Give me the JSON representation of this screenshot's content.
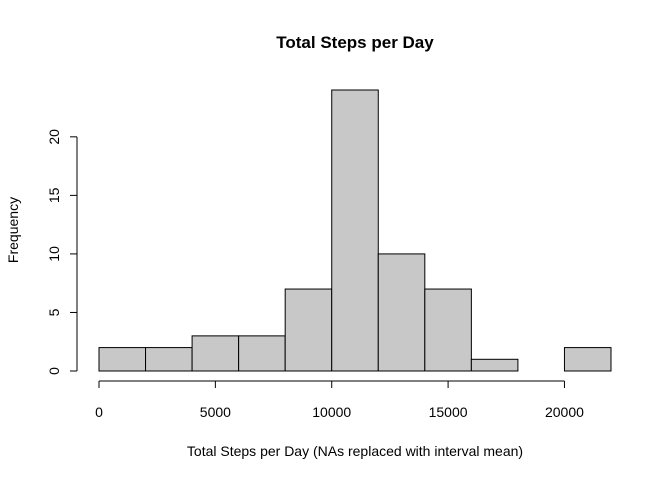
{
  "chart_data": {
    "type": "bar",
    "subtype": "histogram",
    "title": "Total Steps per Day",
    "xlabel": "Total Steps per Day (NAs replaced with interval mean)",
    "ylabel": "Frequency",
    "bins": [
      {
        "start": 0,
        "end": 2000,
        "count": 2
      },
      {
        "start": 2000,
        "end": 4000,
        "count": 2
      },
      {
        "start": 4000,
        "end": 6000,
        "count": 3
      },
      {
        "start": 6000,
        "end": 8000,
        "count": 3
      },
      {
        "start": 8000,
        "end": 10000,
        "count": 7
      },
      {
        "start": 10000,
        "end": 12000,
        "count": 24
      },
      {
        "start": 12000,
        "end": 14000,
        "count": 10
      },
      {
        "start": 14000,
        "end": 16000,
        "count": 7
      },
      {
        "start": 16000,
        "end": 18000,
        "count": 1
      },
      {
        "start": 18000,
        "end": 20000,
        "count": 0
      },
      {
        "start": 20000,
        "end": 22000,
        "count": 2
      }
    ],
    "xlim": [
      0,
      22000
    ],
    "ylim": [
      0,
      24
    ],
    "x_ticks": [
      0,
      5000,
      10000,
      15000,
      20000
    ],
    "y_ticks": [
      0,
      5,
      10,
      15,
      20
    ],
    "bar_color": "#c8c8c8",
    "grid": false,
    "legend": "none"
  }
}
